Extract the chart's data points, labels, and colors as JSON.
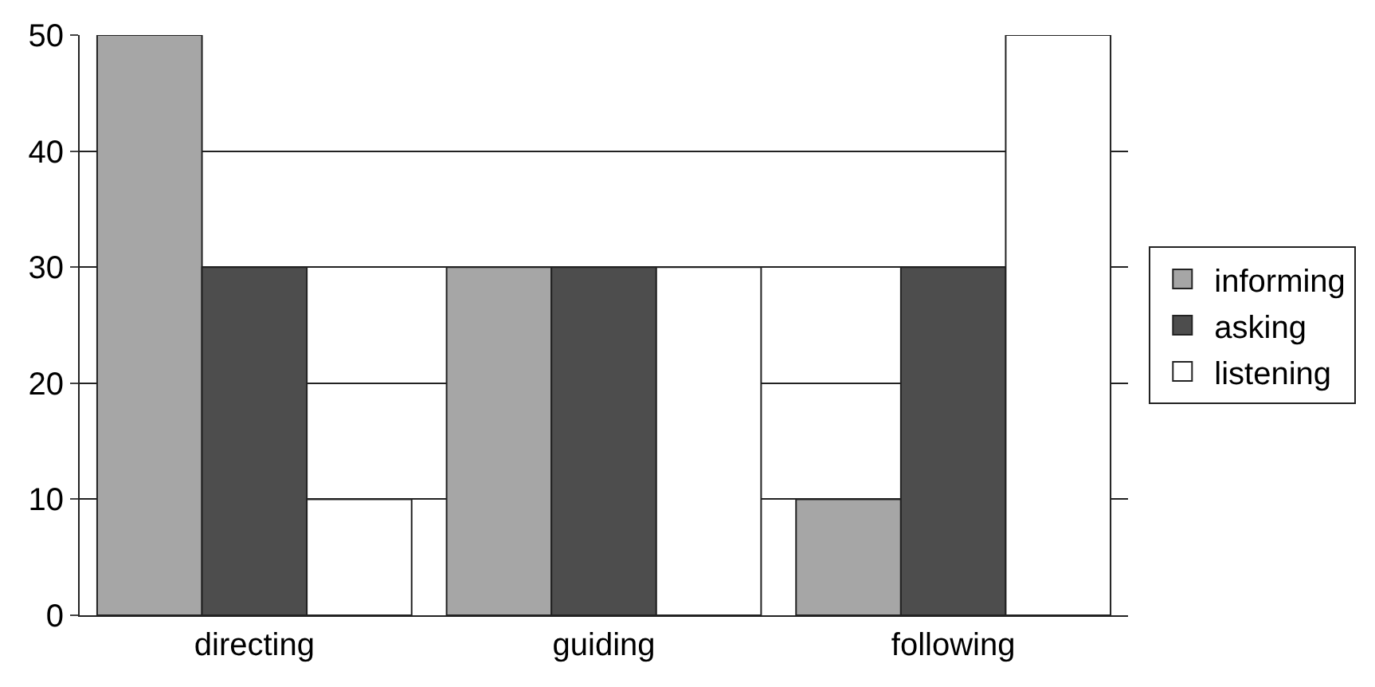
{
  "chart_data": {
    "type": "bar",
    "categories": [
      "directing",
      "guiding",
      "following"
    ],
    "series": [
      {
        "name": "informing",
        "color": "#a6a6a6",
        "values": [
          50,
          30,
          10
        ]
      },
      {
        "name": "asking",
        "color": "#4d4d4d",
        "values": [
          30,
          30,
          30
        ]
      },
      {
        "name": "listening",
        "color": "#ffffff",
        "values": [
          10,
          30,
          50
        ]
      }
    ],
    "ylim": [
      0,
      50
    ],
    "yticks": [
      0,
      10,
      20,
      30,
      40,
      50
    ],
    "grid": "y",
    "legend": "right"
  }
}
